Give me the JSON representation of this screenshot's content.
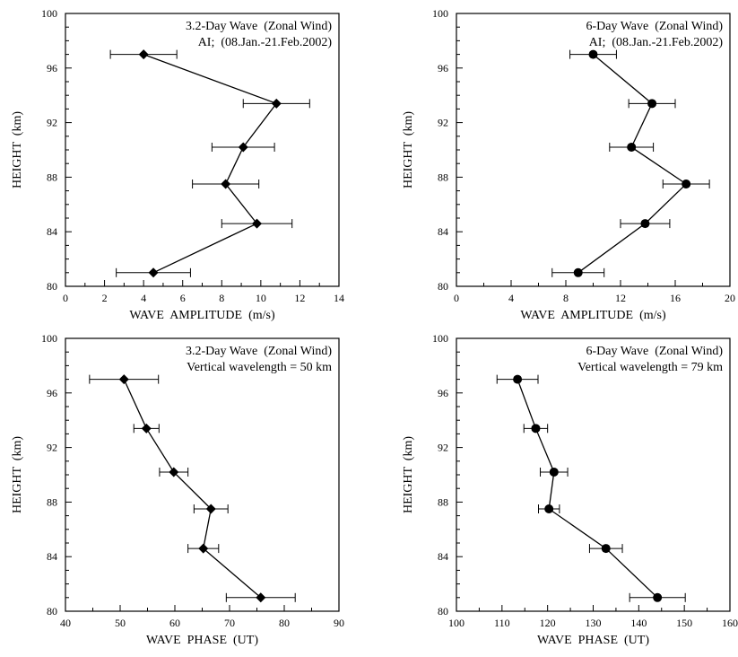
{
  "chart_data": [
    {
      "type": "line",
      "title_lines": [
        "3.2-Day Wave  (Zonal Wind)",
        "AI;  (08.Jan.-21.Feb.2002)"
      ],
      "xlabel": "WAVE  AMPLITUDE  (m/s)",
      "ylabel": "HEIGHT  (km)",
      "xlim": [
        0,
        14
      ],
      "ylim": [
        80,
        100
      ],
      "xticks": [
        0,
        2,
        4,
        6,
        8,
        10,
        12,
        14
      ],
      "yticks": [
        80,
        84,
        88,
        92,
        96,
        100
      ],
      "marker": "diamond",
      "series": [
        {
          "y": [
            81,
            84.6,
            87.5,
            90.2,
            93.4,
            97
          ],
          "x": [
            4.5,
            9.8,
            8.2,
            9.1,
            10.8,
            4
          ],
          "err": [
            1.9,
            1.8,
            1.7,
            1.6,
            1.7,
            1.7
          ]
        }
      ]
    },
    {
      "type": "line",
      "title_lines": [
        "6-Day Wave  (Zonal Wind)",
        "AI;  (08.Jan.-21.Feb.2002)"
      ],
      "xlabel": "WAVE  AMPLITUDE  (m/s)",
      "ylabel": "HEIGHT  (km)",
      "xlim": [
        0,
        20
      ],
      "ylim": [
        80,
        100
      ],
      "xticks": [
        0,
        4,
        8,
        12,
        16,
        20
      ],
      "yticks": [
        80,
        84,
        88,
        92,
        96,
        100
      ],
      "marker": "circle",
      "series": [
        {
          "y": [
            81,
            84.6,
            87.5,
            90.2,
            93.4,
            97
          ],
          "x": [
            8.9,
            13.8,
            16.8,
            12.8,
            14.3,
            10
          ],
          "err": [
            1.9,
            1.8,
            1.7,
            1.6,
            1.7,
            1.7
          ]
        }
      ]
    },
    {
      "type": "line",
      "title_lines": [
        "3.2-Day Wave  (Zonal Wind)",
        "Vertical wavelength = 50 km"
      ],
      "xlabel": "WAVE  PHASE  (UT)",
      "ylabel": "HEIGHT  (km)",
      "xlim": [
        40,
        90
      ],
      "ylim": [
        80,
        100
      ],
      "xticks": [
        40,
        50,
        60,
        70,
        80,
        90
      ],
      "yticks": [
        80,
        84,
        88,
        92,
        96,
        100
      ],
      "marker": "diamond",
      "series": [
        {
          "y": [
            81,
            84.6,
            87.5,
            90.2,
            93.4,
            97
          ],
          "x": [
            75.7,
            65.2,
            66.6,
            59.8,
            54.8,
            50.7
          ],
          "err": [
            6.3,
            2.8,
            3.1,
            2.6,
            2.3,
            6.3
          ]
        }
      ]
    },
    {
      "type": "line",
      "title_lines": [
        "6-Day Wave  (Zonal Wind)",
        "Vertical wavelength = 79 km"
      ],
      "xlabel": "WAVE  PHASE  (UT)",
      "ylabel": "HEIGHT  (km)",
      "xlim": [
        100,
        160
      ],
      "ylim": [
        80,
        100
      ],
      "xticks": [
        100,
        110,
        120,
        130,
        140,
        150,
        160
      ],
      "yticks": [
        80,
        84,
        88,
        92,
        96,
        100
      ],
      "marker": "circle",
      "series": [
        {
          "y": [
            81,
            84.6,
            87.5,
            90.2,
            93.4,
            97
          ],
          "x": [
            144.1,
            132.8,
            120.3,
            121.4,
            117.4,
            113.4
          ],
          "err": [
            6.1,
            3.6,
            2.3,
            3.0,
            2.6,
            4.5
          ]
        }
      ]
    }
  ]
}
